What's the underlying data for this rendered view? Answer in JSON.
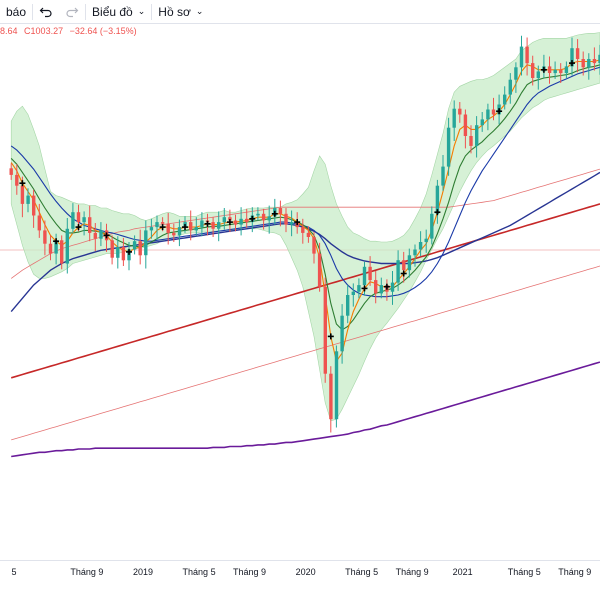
{
  "toolbar": {
    "partial_label": "báo",
    "chart_menu_label": "Biểu đồ",
    "profile_menu_label": "Hồ sơ"
  },
  "ohlc": {
    "open_partial": "8.64",
    "close": "C1003.27",
    "change": "−32.64 (−3.15%)"
  },
  "colors": {
    "up": "#26a69a",
    "down": "#ef5350",
    "band_fill": "#c8ecc8",
    "ma_fast": "#f57c00",
    "ma_mid": "#2e7d32",
    "ma_blue": "#1a3aa8",
    "ma_navy": "#283593",
    "ma_red": "#c62828",
    "ma_salmon": "#e57373",
    "ma_purple": "#6a1b9a"
  },
  "chart_data": {
    "type": "line",
    "x_tick_labels": [
      "5",
      "Tháng 9",
      "2019",
      "Tháng 5",
      "Tháng 9",
      "2020",
      "Tháng 5",
      "Tháng 9",
      "2021",
      "Tháng 5",
      "Tháng 9"
    ],
    "x_tick_pos": [
      0.5,
      13.5,
      23.5,
      33.5,
      42.5,
      52.5,
      62.5,
      71.5,
      80.5,
      91.5,
      100.5
    ],
    "x_range": [
      -2,
      105
    ],
    "y_range": [
      560,
      1200
    ],
    "series": [
      {
        "role": "price_close",
        "values": [
          1025,
          1012,
          990,
          1000,
          976,
          958,
          942,
          930,
          946,
          918,
          960,
          980,
          968,
          974,
          955,
          948,
          958,
          946,
          925,
          938,
          922,
          935,
          945,
          928,
          958,
          962,
          968,
          966,
          955,
          952,
          962,
          968,
          958,
          962,
          970,
          968,
          960,
          968,
          974,
          970,
          965,
          972,
          968,
          976,
          978,
          970,
          975,
          985,
          978,
          965,
          968,
          962,
          955,
          950,
          930,
          890,
          785,
          730,
          812,
          855,
          880,
          884,
          892,
          914,
          898,
          882,
          892,
          884,
          895,
          922,
          910,
          928,
          935,
          944,
          948,
          978,
          1012,
          1035,
          1082,
          1105,
          1098,
          1072,
          1060,
          1085,
          1092,
          1104,
          1098,
          1110,
          1122,
          1140,
          1155,
          1180,
          1160,
          1142,
          1150,
          1156,
          1148,
          1152,
          1148,
          1156,
          1178,
          1165,
          1155,
          1165,
          1160,
          1170
        ]
      },
      {
        "role": "band_upper",
        "values": [
          1090,
          1102,
          1108,
          1098,
          1080,
          1060,
          1032,
          1005,
          1000,
          998,
          995,
          992,
          990,
          990,
          988,
          988,
          985,
          985,
          982,
          980,
          978,
          978,
          976,
          972,
          970,
          972,
          975,
          978,
          980,
          978,
          975,
          975,
          975,
          975,
          978,
          980,
          980,
          980,
          982,
          980,
          980,
          982,
          984,
          985,
          985,
          985,
          986,
          986,
          986,
          990,
          992,
          995,
          1002,
          1010,
          1030,
          1048,
          1038,
          1012,
          990,
          975,
          962,
          955,
          952,
          948,
          945,
          945,
          944,
          944,
          945,
          948,
          952,
          960,
          972,
          985,
          1002,
          1025,
          1050,
          1075,
          1105,
          1125,
          1132,
          1135,
          1138,
          1140,
          1140,
          1142,
          1145,
          1150,
          1155,
          1160,
          1165,
          1175,
          1180,
          1185,
          1188,
          1190,
          1190,
          1190,
          1190,
          1190,
          1192,
          1194,
          1195,
          1196,
          1196,
          1197
        ]
      },
      {
        "role": "band_lower",
        "values": [
          990,
          965,
          940,
          920,
          905,
          900,
          900,
          902,
          905,
          908,
          912,
          918,
          920,
          922,
          924,
          926,
          928,
          930,
          930,
          930,
          932,
          934,
          936,
          936,
          938,
          940,
          942,
          946,
          948,
          950,
          952,
          954,
          955,
          955,
          956,
          956,
          957,
          957,
          958,
          958,
          959,
          960,
          960,
          960,
          960,
          958,
          956,
          955,
          952,
          940,
          925,
          910,
          890,
          860,
          830,
          790,
          750,
          728,
          730,
          742,
          756,
          770,
          784,
          800,
          815,
          828,
          838,
          846,
          855,
          864,
          874,
          884,
          896,
          908,
          922,
          935,
          948,
          960,
          975,
          990,
          1005,
          1018,
          1030,
          1040,
          1048,
          1055,
          1060,
          1066,
          1072,
          1078,
          1086,
          1094,
          1100,
          1106,
          1110,
          1115,
          1118,
          1120,
          1122,
          1124,
          1126,
          1128,
          1130,
          1132,
          1134,
          1136,
          1138
        ]
      },
      {
        "role": "ma_fast",
        "values": [
          1040,
          1030,
          1015,
          1005,
          995,
          980,
          965,
          952,
          945,
          940,
          945,
          955,
          962,
          966,
          964,
          958,
          956,
          952,
          944,
          938,
          934,
          932,
          936,
          938,
          944,
          950,
          958,
          962,
          962,
          960,
          960,
          962,
          962,
          962,
          964,
          966,
          965,
          965,
          967,
          968,
          968,
          969,
          970,
          972,
          974,
          974,
          974,
          978,
          978,
          975,
          973,
          968,
          963,
          958,
          948,
          925,
          880,
          830,
          800,
          810,
          838,
          860,
          875,
          888,
          896,
          894,
          890,
          890,
          890,
          898,
          906,
          914,
          924,
          934,
          942,
          958,
          980,
          1005,
          1032,
          1060,
          1080,
          1085,
          1080,
          1080,
          1085,
          1092,
          1096,
          1102,
          1110,
          1122,
          1135,
          1150,
          1158,
          1156,
          1152,
          1152,
          1152,
          1152,
          1152,
          1154,
          1160,
          1162,
          1162,
          1162,
          1162,
          1164
        ]
      },
      {
        "role": "ma_mid",
        "values": [
          1045,
          1038,
          1028,
          1018,
          1008,
          996,
          985,
          975,
          966,
          958,
          955,
          955,
          956,
          958,
          958,
          957,
          956,
          954,
          950,
          946,
          943,
          940,
          939,
          938,
          940,
          944,
          948,
          952,
          955,
          956,
          957,
          958,
          959,
          960,
          961,
          962,
          963,
          963,
          964,
          965,
          966,
          967,
          968,
          969,
          970,
          971,
          972,
          973,
          974,
          973,
          971,
          968,
          965,
          960,
          952,
          935,
          905,
          870,
          845,
          838,
          842,
          850,
          860,
          870,
          878,
          882,
          884,
          886,
          888,
          892,
          897,
          903,
          910,
          918,
          926,
          938,
          954,
          972,
          992,
          1015,
          1035,
          1048,
          1055,
          1060,
          1065,
          1072,
          1078,
          1085,
          1093,
          1102,
          1112,
          1124,
          1134,
          1138,
          1140,
          1142,
          1143,
          1144,
          1145,
          1146,
          1148,
          1151,
          1153,
          1155,
          1156,
          1158
        ]
      },
      {
        "role": "ma_blue",
        "values": [
          1060,
          1055,
          1048,
          1040,
          1032,
          1022,
          1012,
          1002,
          993,
          985,
          978,
          972,
          968,
          964,
          962,
          960,
          958,
          956,
          955,
          953,
          951,
          949,
          947,
          946,
          945,
          945,
          946,
          947,
          948,
          949,
          950,
          951,
          952,
          953,
          954,
          955,
          956,
          957,
          958,
          959,
          960,
          961,
          962,
          963,
          964,
          965,
          966,
          967,
          968,
          968,
          967,
          966,
          964,
          962,
          958,
          952,
          942,
          928,
          912,
          900,
          892,
          886,
          882,
          880,
          879,
          878,
          878,
          878,
          879,
          880,
          882,
          885,
          889,
          894,
          900,
          908,
          918,
          930,
          944,
          960,
          976,
          992,
          1006,
          1018,
          1030,
          1040,
          1050,
          1060,
          1070,
          1080,
          1090,
          1100,
          1110,
          1118,
          1124,
          1128,
          1132,
          1135,
          1138,
          1141,
          1144,
          1147,
          1149,
          1151,
          1153,
          1155
        ]
      },
      {
        "role": "ma_navy",
        "values": [
          860,
          868,
          876,
          884,
          892,
          898,
          904,
          910,
          914,
          918,
          921,
          924,
          926,
          928,
          930,
          932,
          934,
          935,
          936,
          937,
          938,
          939,
          940,
          941,
          942,
          943,
          944,
          945,
          946,
          947,
          948,
          949,
          950,
          951,
          952,
          953,
          954,
          955,
          956,
          957,
          958,
          959,
          960,
          961,
          962,
          963,
          964,
          965,
          966,
          966,
          965,
          964,
          962,
          960,
          957,
          953,
          948,
          942,
          937,
          932,
          928,
          925,
          923,
          921,
          920,
          919,
          918,
          918,
          918,
          918,
          918,
          918,
          919,
          920,
          921,
          923,
          925,
          928,
          931,
          934,
          937,
          940,
          943,
          946,
          949,
          952,
          955,
          958,
          961,
          964,
          968,
          972,
          976,
          980,
          984,
          988,
          992,
          996,
          1000,
          1004,
          1008,
          1012,
          1016,
          1020,
          1024,
          1028
        ]
      },
      {
        "role": "ma_red",
        "values": [
          780,
          782,
          784,
          786,
          788,
          790,
          792,
          794,
          796,
          798,
          800,
          802,
          804,
          806,
          808,
          810,
          812,
          814,
          816,
          818,
          820,
          822,
          824,
          826,
          828,
          830,
          832,
          834,
          836,
          838,
          840,
          842,
          844,
          846,
          848,
          850,
          852,
          854,
          856,
          858,
          860,
          862,
          864,
          866,
          868,
          870,
          872,
          874,
          876,
          878,
          880,
          882,
          884,
          886,
          888,
          890,
          892,
          894,
          896,
          898,
          900,
          902,
          904,
          906,
          908,
          910,
          912,
          914,
          916,
          918,
          920,
          922,
          924,
          926,
          928,
          930,
          932,
          934,
          936,
          938,
          940,
          942,
          944,
          946,
          948,
          950,
          952,
          954,
          956,
          958,
          960,
          962,
          964,
          966,
          968,
          970,
          972,
          974,
          976,
          978,
          980,
          982,
          984,
          986,
          988,
          990
        ]
      },
      {
        "role": "ma_salmon_upper",
        "values": [
          900,
          905,
          910,
          914,
          918,
          922,
          926,
          930,
          933,
          936,
          938,
          940,
          942,
          944,
          946,
          948,
          950,
          952,
          954,
          956,
          957,
          958,
          960,
          961,
          962,
          963,
          964,
          965,
          966,
          967,
          968,
          969,
          970,
          971,
          972,
          973,
          974,
          975,
          976,
          977,
          978,
          979,
          980,
          981,
          982,
          983,
          984,
          985,
          986,
          986,
          986,
          986,
          986,
          986,
          986,
          986,
          986,
          986,
          986,
          986,
          986,
          986,
          986,
          986,
          986,
          986,
          986,
          986,
          986,
          986,
          986,
          986,
          986,
          986,
          986,
          986,
          986,
          986,
          986,
          987,
          988,
          989,
          990,
          991,
          992,
          993,
          994,
          996,
          998,
          1000,
          1002,
          1004,
          1006,
          1008,
          1010,
          1012,
          1014,
          1016,
          1018,
          1020,
          1022,
          1024,
          1026,
          1028,
          1030,
          1032
        ]
      },
      {
        "role": "ma_salmon_lower",
        "values": [
          705,
          707,
          709,
          711,
          713,
          715,
          717,
          719,
          721,
          723,
          725,
          727,
          729,
          731,
          733,
          735,
          737,
          739,
          741,
          743,
          745,
          747,
          749,
          751,
          753,
          755,
          757,
          759,
          761,
          763,
          765,
          767,
          769,
          771,
          773,
          775,
          777,
          779,
          781,
          783,
          785,
          787,
          789,
          791,
          793,
          795,
          797,
          799,
          801,
          803,
          805,
          807,
          809,
          811,
          813,
          815,
          817,
          819,
          821,
          823,
          825,
          827,
          829,
          831,
          833,
          835,
          837,
          839,
          841,
          843,
          845,
          847,
          849,
          851,
          853,
          855,
          857,
          859,
          861,
          863,
          865,
          867,
          869,
          871,
          873,
          875,
          877,
          879,
          881,
          883,
          885,
          887,
          889,
          891,
          893,
          895,
          897,
          899,
          901,
          903,
          905,
          907,
          909,
          911,
          913,
          915,
          917
        ]
      },
      {
        "role": "ma_purple",
        "values": [
          685,
          686,
          687,
          688,
          689,
          690,
          690,
          691,
          692,
          692,
          693,
          693,
          694,
          694,
          694,
          695,
          695,
          695,
          695,
          695,
          695,
          695,
          695,
          695,
          695,
          695,
          695,
          695,
          695,
          695,
          695,
          695,
          695,
          695,
          695,
          695,
          696,
          696,
          696,
          697,
          697,
          697,
          698,
          698,
          699,
          699,
          700,
          700,
          701,
          702,
          702,
          703,
          704,
          705,
          706,
          707,
          708,
          709,
          710,
          711,
          712,
          714,
          715,
          717,
          718,
          720,
          722,
          723,
          725,
          727,
          729,
          731,
          733,
          735,
          737,
          739,
          741,
          743,
          745,
          747,
          749,
          751,
          753,
          755,
          757,
          759,
          761,
          763,
          765,
          767,
          769,
          771,
          773,
          775,
          777,
          779,
          781,
          783,
          785,
          787,
          789,
          791,
          793,
          795,
          797,
          799
        ]
      }
    ],
    "crossover_markers_x": [
      2,
      8,
      12,
      17,
      21,
      27,
      31,
      35,
      39,
      43,
      47,
      51,
      57,
      63,
      67,
      70,
      76,
      87,
      95,
      100
    ]
  }
}
